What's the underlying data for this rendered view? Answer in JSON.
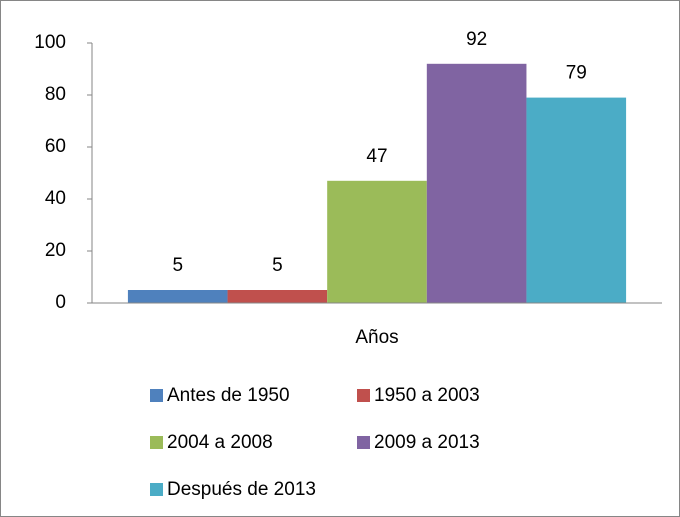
{
  "chart_data": {
    "type": "bar",
    "categories": [
      "Años"
    ],
    "series": [
      {
        "name": "Antes de 1950",
        "color": "#4f81bd",
        "values": [
          5
        ]
      },
      {
        "name": "1950 a 2003",
        "color": "#c0504d",
        "values": [
          5
        ]
      },
      {
        "name": "2004 a 2008",
        "color": "#9bbb59",
        "values": [
          47
        ]
      },
      {
        "name": "2009 a 2013",
        "color": "#8064a2",
        "values": [
          92
        ]
      },
      {
        "name": "Después de 2013",
        "color": "#4bacc6",
        "values": [
          79
        ]
      }
    ],
    "ylim": [
      0,
      100
    ],
    "yticks": [
      0,
      20,
      40,
      60,
      80,
      100
    ],
    "grid": false,
    "legend": "bottom"
  }
}
